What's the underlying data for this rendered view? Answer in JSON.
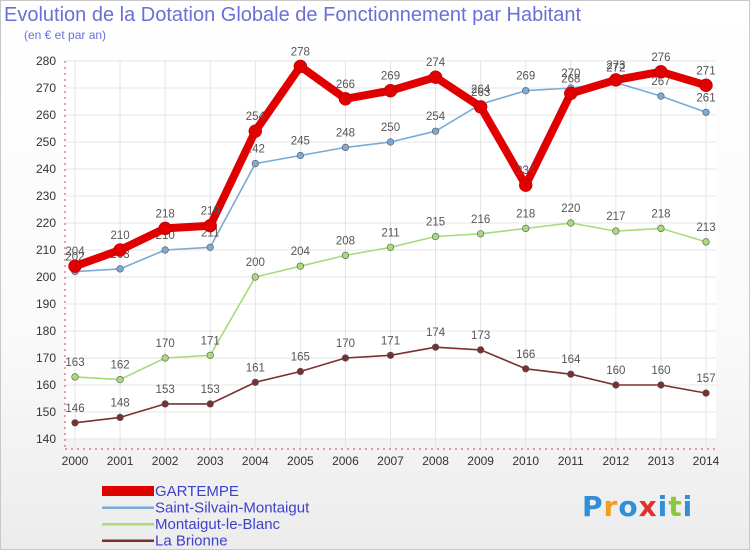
{
  "title": "Evolution de la Dotation Globale de Fonctionnement par Habitant",
  "subtitle": "(en € et par an)",
  "logo": {
    "text": "Proxiti",
    "colors": [
      "#2f8fd8",
      "#f0a020",
      "#2f8fd8",
      "#e03030",
      "#2f8fd8",
      "#8cc63f",
      "#2f8fd8"
    ]
  },
  "chart_data": {
    "type": "line",
    "x": [
      2000,
      2001,
      2002,
      2003,
      2004,
      2005,
      2006,
      2007,
      2008,
      2009,
      2010,
      2011,
      2012,
      2013,
      2014
    ],
    "ylim": [
      140,
      280
    ],
    "yticks": [
      140,
      150,
      160,
      170,
      180,
      190,
      200,
      210,
      220,
      230,
      240,
      250,
      260,
      270,
      280
    ],
    "grid": true,
    "legend": "bottom-left",
    "series": [
      {
        "name": "GARTEMPE",
        "color": "#e00000",
        "values": [
          204,
          210,
          218,
          219,
          254,
          278,
          266,
          269,
          274,
          263,
          234,
          268,
          273,
          276,
          271
        ]
      },
      {
        "name": "Saint-Silvain-Montaigut",
        "color": "#7aaad6",
        "values": [
          202,
          203,
          210,
          211,
          242,
          245,
          248,
          250,
          254,
          264,
          269,
          270,
          272,
          267,
          261
        ]
      },
      {
        "name": "Montaigut-le-Blanc",
        "color": "#a8dc78",
        "values": [
          163,
          162,
          170,
          171,
          200,
          204,
          208,
          211,
          215,
          216,
          218,
          220,
          217,
          218,
          213
        ]
      },
      {
        "name": "La Brionne",
        "color": "#7a3030",
        "values": [
          146,
          148,
          153,
          153,
          161,
          165,
          170,
          171,
          174,
          173,
          166,
          164,
          160,
          160,
          157
        ]
      }
    ]
  }
}
